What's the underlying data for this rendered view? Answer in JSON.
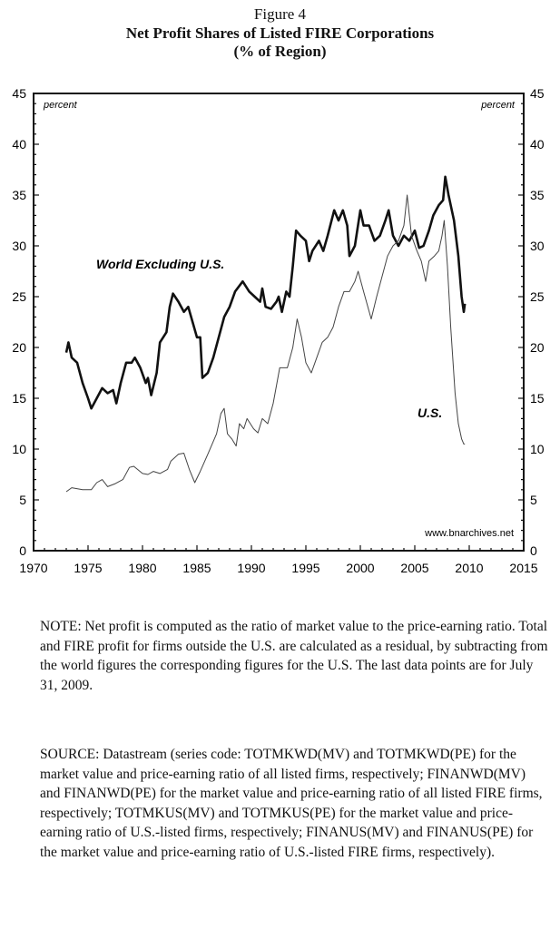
{
  "figure_label": "Figure 4",
  "title_line1": "Net Profit Shares of Listed FIRE Corporations",
  "title_line2": "(% of Region)",
  "note": "NOTE: Net profit is computed as the ratio of market value to the price-earning ratio. Total and FIRE profit for firms outside the U.S. are calculated as a residual, by subtracting from the world figures the corresponding figures for the U.S. The last data points are for July 31, 2009.",
  "source": "SOURCE: Datastream (series code: TOTMKWD(MV) and TOTMKWD(PE) for the market value and price-earning ratio of all listed firms, respectively;  FINANWD(MV) and FINANWD(PE) for the market value and price-earning ratio of all listed FIRE firms, respectively;  TOTMKUS(MV) and TOTMKUS(PE) for the market value and price-earning ratio of U.S.-listed firms, respectively; FINANUS(MV) and FINANUS(PE) for the market value and price-earning ratio of U.S.-listed FIRE firms, respectively).",
  "chart_data": {
    "type": "line",
    "ylabel_left": "percent",
    "ylabel_right": "percent",
    "watermark": "www.bnarchives.net",
    "xlim": [
      1970,
      2015
    ],
    "ylim": [
      0,
      45
    ],
    "x_ticks": [
      1970,
      1975,
      1980,
      1985,
      1990,
      1995,
      2000,
      2005,
      2010,
      2015
    ],
    "y_ticks": [
      0,
      5,
      10,
      15,
      20,
      25,
      30,
      35,
      40,
      45
    ],
    "grid": false,
    "series": [
      {
        "name": "World Excluding U.S.",
        "color": "#111111",
        "points": [
          [
            1973.0,
            19.5
          ],
          [
            1973.2,
            20.5
          ],
          [
            1973.5,
            19
          ],
          [
            1974,
            18.5
          ],
          [
            1974.5,
            16.5
          ],
          [
            1975,
            15
          ],
          [
            1975.3,
            14.0
          ],
          [
            1975.8,
            15
          ],
          [
            1976.3,
            16
          ],
          [
            1976.8,
            15.5
          ],
          [
            1977.3,
            15.8
          ],
          [
            1977.6,
            14.5
          ],
          [
            1978,
            16.5
          ],
          [
            1978.5,
            18.5
          ],
          [
            1979,
            18.5
          ],
          [
            1979.3,
            19
          ],
          [
            1979.8,
            18
          ],
          [
            1980.3,
            16.5
          ],
          [
            1980.5,
            17
          ],
          [
            1980.8,
            15.3
          ],
          [
            1981.3,
            17.5
          ],
          [
            1981.6,
            20.5
          ],
          [
            1982.2,
            21.5
          ],
          [
            1982.5,
            24
          ],
          [
            1982.8,
            25.3
          ],
          [
            1983.3,
            24.5
          ],
          [
            1983.8,
            23.5
          ],
          [
            1984.2,
            24
          ],
          [
            1984.6,
            22.5
          ],
          [
            1985,
            21
          ],
          [
            1985.3,
            21
          ],
          [
            1985.5,
            17
          ],
          [
            1986,
            17.5
          ],
          [
            1986.5,
            19
          ],
          [
            1987,
            21
          ],
          [
            1987.5,
            23
          ],
          [
            1988,
            24
          ],
          [
            1988.5,
            25.5
          ],
          [
            1989.2,
            26.5
          ],
          [
            1989.8,
            25.5
          ],
          [
            1990.3,
            25
          ],
          [
            1990.8,
            24.5
          ],
          [
            1991,
            25.8
          ],
          [
            1991.3,
            24
          ],
          [
            1991.8,
            23.8
          ],
          [
            1992.3,
            24.5
          ],
          [
            1992.5,
            25
          ],
          [
            1992.8,
            23.5
          ],
          [
            1993.2,
            25.5
          ],
          [
            1993.5,
            25
          ],
          [
            1993.8,
            28
          ],
          [
            1994.1,
            31.5
          ],
          [
            1994.5,
            31
          ],
          [
            1995,
            30.5
          ],
          [
            1995.3,
            28.5
          ],
          [
            1995.6,
            29.5
          ],
          [
            1996.2,
            30.5
          ],
          [
            1996.6,
            29.5
          ],
          [
            1997,
            31
          ],
          [
            1997.6,
            33.5
          ],
          [
            1998,
            32.5
          ],
          [
            1998.4,
            33.5
          ],
          [
            1998.8,
            32
          ],
          [
            1999,
            29
          ],
          [
            1999.5,
            30
          ],
          [
            2000,
            33.5
          ],
          [
            2000.3,
            32
          ],
          [
            2000.8,
            32
          ],
          [
            2001.3,
            30.5
          ],
          [
            2001.8,
            31
          ],
          [
            2002.3,
            32.5
          ],
          [
            2002.6,
            33.5
          ],
          [
            2003,
            31
          ],
          [
            2003.5,
            30
          ],
          [
            2004,
            31
          ],
          [
            2004.5,
            30.5
          ],
          [
            2005,
            31.5
          ],
          [
            2005.4,
            29.8
          ],
          [
            2005.8,
            30
          ],
          [
            2006.3,
            31.5
          ],
          [
            2006.7,
            33
          ],
          [
            2007.2,
            34
          ],
          [
            2007.6,
            34.5
          ],
          [
            2007.8,
            36.8
          ],
          [
            2008.1,
            35
          ],
          [
            2008.6,
            32.5
          ],
          [
            2009,
            29
          ],
          [
            2009.3,
            25
          ],
          [
            2009.5,
            23.5
          ],
          [
            2009.6,
            24.3
          ]
        ]
      },
      {
        "name": "U.S.",
        "color": "#444444",
        "points": [
          [
            1973,
            5.8
          ],
          [
            1973.5,
            6.2
          ],
          [
            1974.5,
            6
          ],
          [
            1975.3,
            6
          ],
          [
            1975.8,
            6.7
          ],
          [
            1976.3,
            7
          ],
          [
            1976.8,
            6.3
          ],
          [
            1977.5,
            6.6
          ],
          [
            1978.2,
            7
          ],
          [
            1978.8,
            8.2
          ],
          [
            1979.2,
            8.3
          ],
          [
            1980,
            7.6
          ],
          [
            1980.5,
            7.5
          ],
          [
            1981,
            7.8
          ],
          [
            1981.6,
            7.6
          ],
          [
            1982.3,
            8
          ],
          [
            1982.6,
            8.8
          ],
          [
            1983.3,
            9.5
          ],
          [
            1983.8,
            9.6
          ],
          [
            1984.3,
            8
          ],
          [
            1984.8,
            6.7
          ],
          [
            1985.3,
            7.8
          ],
          [
            1986,
            9.5
          ],
          [
            1986.8,
            11.5
          ],
          [
            1987.2,
            13.5
          ],
          [
            1987.5,
            14
          ],
          [
            1987.8,
            11.5
          ],
          [
            1988.2,
            11
          ],
          [
            1988.6,
            10.3
          ],
          [
            1988.9,
            12.5
          ],
          [
            1989.3,
            12
          ],
          [
            1989.6,
            13
          ],
          [
            1990.2,
            12
          ],
          [
            1990.6,
            11.6
          ],
          [
            1991,
            13
          ],
          [
            1991.5,
            12.5
          ],
          [
            1992,
            14.5
          ],
          [
            1992.6,
            18
          ],
          [
            1993.3,
            18
          ],
          [
            1993.8,
            20
          ],
          [
            1994.2,
            22.8
          ],
          [
            1994.6,
            21
          ],
          [
            1995,
            18.5
          ],
          [
            1995.5,
            17.5
          ],
          [
            1996,
            19
          ],
          [
            1996.5,
            20.5
          ],
          [
            1997,
            21
          ],
          [
            1997.5,
            22
          ],
          [
            1998,
            24
          ],
          [
            1998.5,
            25.5
          ],
          [
            1999,
            25.5
          ],
          [
            1999.5,
            26.5
          ],
          [
            1999.8,
            27.5
          ],
          [
            2000.3,
            25.5
          ],
          [
            2001,
            22.8
          ],
          [
            2001.5,
            25
          ],
          [
            2002,
            27
          ],
          [
            2002.5,
            29
          ],
          [
            2003,
            30
          ],
          [
            2003.5,
            30.5
          ],
          [
            2004,
            32
          ],
          [
            2004.3,
            35
          ],
          [
            2004.7,
            31
          ],
          [
            2005.2,
            29.5
          ],
          [
            2005.6,
            28.5
          ],
          [
            2006,
            26.5
          ],
          [
            2006.3,
            28.5
          ],
          [
            2006.8,
            29
          ],
          [
            2007.2,
            29.5
          ],
          [
            2007.5,
            31
          ],
          [
            2007.7,
            32.5
          ],
          [
            2008,
            28
          ],
          [
            2008.3,
            22
          ],
          [
            2008.7,
            15.5
          ],
          [
            2009,
            12.5
          ],
          [
            2009.3,
            11
          ],
          [
            2009.5,
            10.5
          ],
          [
            2009.6,
            10.5
          ]
        ]
      }
    ]
  }
}
